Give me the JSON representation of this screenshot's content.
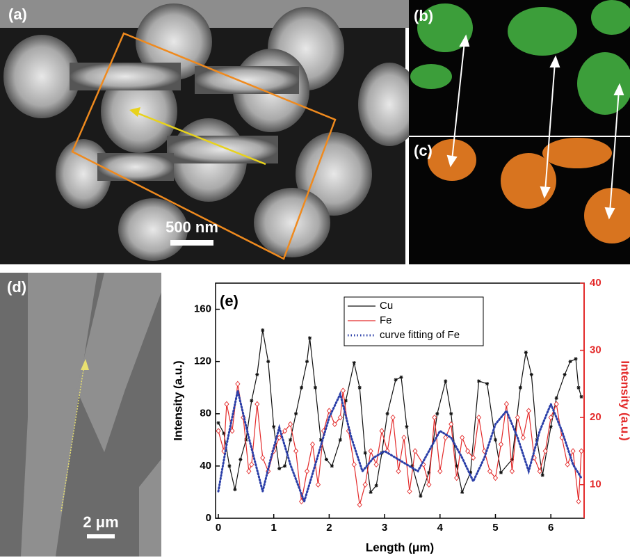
{
  "panels": {
    "a": {
      "label": "(a)",
      "scale": "500 nm"
    },
    "b": {
      "label": "(b)"
    },
    "c": {
      "label": "(c)"
    },
    "d": {
      "label": "(d)",
      "scale": "2 μm"
    }
  },
  "chart_data": {
    "type": "line",
    "title": "(e)",
    "xlabel": "Length (μm)",
    "ylabel": "Intensity (a.u.)",
    "y2label": "Intensity (a.u.)",
    "xlim": [
      -0.05,
      6.6
    ],
    "xticks": [
      0,
      1,
      2,
      3,
      4,
      5,
      6
    ],
    "ylim": [
      0,
      180
    ],
    "yticks": [
      0,
      40,
      80,
      120,
      160
    ],
    "y2lim": [
      5,
      40
    ],
    "y2ticks": [
      10,
      20,
      30,
      40
    ],
    "y2color": "#e32a2a",
    "series": [
      {
        "name": "Cu",
        "color": "#111111",
        "marker": "star",
        "x": [
          0,
          0.1,
          0.2,
          0.3,
          0.4,
          0.5,
          0.6,
          0.7,
          0.8,
          0.9,
          1.0,
          1.1,
          1.2,
          1.3,
          1.4,
          1.5,
          1.6,
          1.65,
          1.75,
          1.85,
          1.95,
          2.05,
          2.2,
          2.3,
          2.45,
          2.55,
          2.65,
          2.75,
          2.85,
          2.95,
          3.05,
          3.2,
          3.3,
          3.4,
          3.5,
          3.65,
          3.8,
          3.95,
          4.1,
          4.2,
          4.3,
          4.4,
          4.55,
          4.7,
          4.85,
          5.0,
          5.1,
          5.3,
          5.45,
          5.55,
          5.65,
          5.75,
          5.85,
          6.0,
          6.1,
          6.25,
          6.35,
          6.45,
          6.5,
          6.55
        ],
        "values": [
          73,
          65,
          40,
          22,
          45,
          60,
          90,
          110,
          144,
          120,
          70,
          38,
          40,
          60,
          80,
          100,
          120,
          138,
          100,
          60,
          45,
          40,
          60,
          90,
          119,
          100,
          50,
          20,
          25,
          50,
          80,
          106,
          108,
          70,
          40,
          17,
          35,
          80,
          105,
          80,
          40,
          20,
          35,
          105,
          103,
          60,
          35,
          45,
          100,
          127,
          110,
          60,
          33,
          70,
          92,
          110,
          120,
          122,
          100,
          93
        ]
      },
      {
        "name": "Fe",
        "color": "#e32a2a",
        "marker": "diamond",
        "axis": "y2",
        "x": [
          0,
          0.1,
          0.15,
          0.25,
          0.35,
          0.45,
          0.55,
          0.6,
          0.7,
          0.8,
          0.9,
          1.0,
          1.1,
          1.2,
          1.3,
          1.4,
          1.5,
          1.6,
          1.7,
          1.8,
          1.9,
          2.0,
          2.1,
          2.2,
          2.25,
          2.35,
          2.45,
          2.55,
          2.65,
          2.75,
          2.85,
          2.95,
          3.05,
          3.15,
          3.25,
          3.35,
          3.45,
          3.55,
          3.7,
          3.8,
          3.9,
          4.0,
          4.1,
          4.2,
          4.3,
          4.4,
          4.5,
          4.6,
          4.7,
          4.8,
          4.9,
          5.0,
          5.1,
          5.2,
          5.3,
          5.4,
          5.5,
          5.6,
          5.7,
          5.8,
          5.9,
          6.0,
          6.1,
          6.2,
          6.3,
          6.4,
          6.5,
          6.55
        ],
        "values": [
          18,
          15,
          22,
          18,
          25,
          20,
          12,
          13,
          22,
          14,
          12,
          15,
          17,
          18,
          19,
          15,
          7.5,
          12,
          16,
          10,
          18,
          21,
          19,
          20,
          24,
          18,
          13,
          7,
          10,
          15,
          13,
          18,
          15,
          20,
          12,
          17,
          9,
          15,
          13,
          10,
          20,
          12,
          17,
          19,
          11,
          17,
          15,
          14,
          20,
          15,
          12,
          11,
          16,
          22,
          12,
          20,
          17,
          21,
          14,
          12,
          15,
          20,
          22,
          17,
          13,
          15,
          7.5,
          15
        ]
      },
      {
        "name": "curve fitting of Fe",
        "color": "#2b3fa8",
        "marker": "dotted",
        "axis": "y2",
        "x": [
          0,
          0.15,
          0.35,
          0.55,
          0.8,
          0.95,
          1.1,
          1.3,
          1.55,
          1.75,
          2.0,
          2.2,
          2.4,
          2.6,
          2.8,
          3.0,
          3.2,
          3.4,
          3.6,
          3.8,
          4.0,
          4.2,
          4.4,
          4.6,
          4.8,
          5.0,
          5.2,
          5.4,
          5.6,
          5.8,
          6.0,
          6.2,
          6.4,
          6.55
        ],
        "values": [
          9,
          16,
          24,
          17,
          9,
          14,
          18.5,
          13,
          7.5,
          13,
          20,
          23.5,
          17,
          12,
          14,
          15,
          14,
          13,
          12,
          15,
          18,
          17,
          14,
          10.5,
          14,
          19,
          21,
          17,
          12,
          18,
          22,
          18,
          13,
          11
        ]
      }
    ]
  }
}
